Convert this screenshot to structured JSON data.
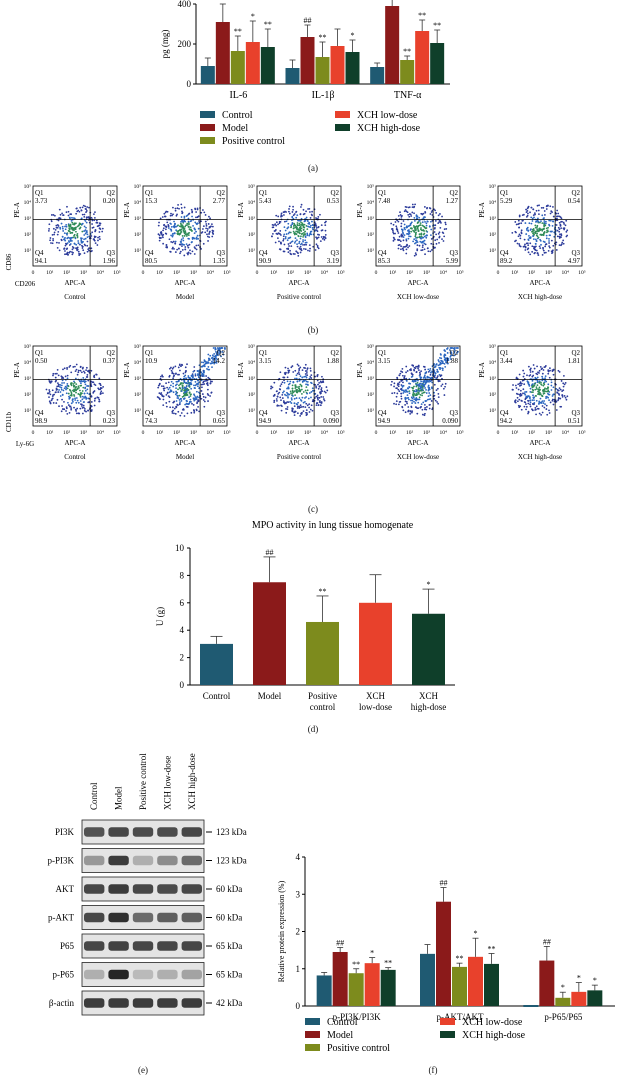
{
  "colors": {
    "control": "#1f5a72",
    "model": "#8b1a1a",
    "positive": "#7d8b1d",
    "low": "#e8412c",
    "high": "#0f3f2a"
  },
  "panels": {
    "a": "(a)",
    "b": "(b)",
    "c": "(c)",
    "d": "(d)",
    "e": "(e)",
    "f": "(f)"
  },
  "legend": {
    "control": "Control",
    "model": "Model",
    "positive": "Positive control",
    "low": "XCH low-dose",
    "high": "XCH high-dose"
  },
  "chart_data": [
    {
      "id": "a",
      "type": "bar",
      "ylabel": "pg (mg)",
      "ylim": [
        0,
        400
      ],
      "yticks": [
        0,
        200,
        400
      ],
      "categories": [
        "IL-6",
        "IL-1β",
        "TNF-α"
      ],
      "series": [
        {
          "name": "Control",
          "values": [
            90,
            80,
            85
          ],
          "err": [
            40,
            40,
            20
          ],
          "sig": [
            "",
            "",
            ""
          ]
        },
        {
          "name": "Model",
          "values": [
            310,
            235,
            390
          ],
          "err": [
            90,
            60,
            60
          ],
          "sig": [
            "",
            "##",
            ""
          ]
        },
        {
          "name": "Positive control",
          "values": [
            165,
            135,
            120
          ],
          "err": [
            75,
            75,
            20
          ],
          "sig": [
            "**",
            "**",
            "**"
          ]
        },
        {
          "name": "XCH low-dose",
          "values": [
            210,
            190,
            265
          ],
          "err": [
            105,
            85,
            55
          ],
          "sig": [
            "*",
            "",
            "**"
          ]
        },
        {
          "name": "XCH high-dose",
          "values": [
            185,
            160,
            205
          ],
          "err": [
            90,
            60,
            65
          ],
          "sig": [
            "**",
            "*",
            "**"
          ]
        }
      ]
    },
    {
      "id": "d",
      "type": "bar",
      "title": "MPO activity in lung tissue homogenate",
      "ylabel": "U (g)",
      "ylim": [
        0,
        10
      ],
      "yticks": [
        0,
        2,
        4,
        6,
        8,
        10
      ],
      "categories": [
        "Control",
        "Model",
        "Positive control",
        "XCH low-dose",
        "XCH high-dose"
      ],
      "category_lines": [
        [
          "Control"
        ],
        [
          "Model"
        ],
        [
          "Positive",
          "control"
        ],
        [
          "XCH",
          "low-dose"
        ],
        [
          "XCH",
          "high-dose"
        ]
      ],
      "values": [
        3.0,
        7.5,
        4.6,
        6.0,
        5.2
      ],
      "err": [
        0.55,
        1.85,
        1.9,
        2.05,
        1.8
      ],
      "sig": [
        "",
        "##",
        "**",
        "",
        "*"
      ]
    },
    {
      "id": "f",
      "type": "bar",
      "ylabel": "Relative protein expression (%)",
      "ylim": [
        0,
        4
      ],
      "yticks": [
        0,
        1,
        2,
        3,
        4
      ],
      "categories": [
        "p-PI3K/PI3K",
        "p-AKT/AKT",
        "p-P65/P65"
      ],
      "series": [
        {
          "name": "Control",
          "values": [
            0.82,
            1.4,
            0.0
          ],
          "err": [
            0.08,
            0.25,
            0.0
          ],
          "sig": [
            "",
            "",
            ""
          ]
        },
        {
          "name": "Model",
          "values": [
            1.45,
            2.8,
            1.22
          ],
          "err": [
            0.12,
            0.38,
            0.38
          ],
          "sig": [
            "##",
            "##",
            "##"
          ]
        },
        {
          "name": "Positive control",
          "values": [
            0.88,
            1.05,
            0.22
          ],
          "err": [
            0.12,
            0.1,
            0.15
          ],
          "sig": [
            "**",
            "**",
            "*"
          ]
        },
        {
          "name": "XCH low-dose",
          "values": [
            1.15,
            1.32,
            0.38
          ],
          "err": [
            0.15,
            0.5,
            0.25
          ],
          "sig": [
            "*",
            "*",
            "*"
          ]
        },
        {
          "name": "XCH high-dose",
          "values": [
            0.97,
            1.13,
            0.42
          ],
          "err": [
            0.06,
            0.28,
            0.14
          ],
          "sig": [
            "**",
            "**",
            "*"
          ]
        }
      ]
    }
  ],
  "flow_b": {
    "ylabel": "PE-A",
    "xlabel": "APC-A",
    "y_marker": "CD86",
    "x_marker": "CD206",
    "plots": [
      {
        "group": "Control",
        "q1": "3.73",
        "q2": "0.20",
        "q3": "1.96",
        "q4": "94.1"
      },
      {
        "group": "Model",
        "q1": "15.3",
        "q2": "2.77",
        "q3": "1.35",
        "q4": "80.5"
      },
      {
        "group": "Positive control",
        "q1": "5.43",
        "q2": "0.53",
        "q3": "3.19",
        "q4": "90.9"
      },
      {
        "group": "XCH low-dose",
        "q1": "7.48",
        "q2": "1.27",
        "q3": "5.99",
        "q4": "85.3"
      },
      {
        "group": "XCH high-dose",
        "q1": "5.29",
        "q2": "0.54",
        "q3": "4.97",
        "q4": "89.2"
      }
    ]
  },
  "flow_c": {
    "ylabel": "PE-A",
    "xlabel": "APC-A",
    "y_marker": "CD11b",
    "x_marker": "Ly-6G",
    "plots": [
      {
        "group": "Control",
        "q1": "0.50",
        "q2": "0.37",
        "q3": "0.23",
        "q4": "98.9"
      },
      {
        "group": "Model",
        "q1": "10.9",
        "q2": "14.2",
        "q3": "0.65",
        "q4": "74.3"
      },
      {
        "group": "Positive control",
        "q1": "3.15",
        "q2": "1.88",
        "q3": "0.090",
        "q4": "94.9"
      },
      {
        "group": "XCH low-dose",
        "q1": "3.15",
        "q2": "1.88",
        "q3": "0.090",
        "q4": "94.9"
      },
      {
        "group": "XCH high-dose",
        "q1": "3.44",
        "q2": "1.81",
        "q3": "0.51",
        "q4": "94.2"
      }
    ]
  },
  "quad_labels": [
    "Q1",
    "Q2",
    "Q3",
    "Q4"
  ],
  "flow_ticks": [
    "0",
    "10¹",
    "10²",
    "10³",
    "10⁴",
    "10⁵"
  ],
  "western": {
    "lanes": [
      "Control",
      "Model",
      "Positive control",
      "XCH low-dose",
      "XCH high-dose"
    ],
    "bands": [
      {
        "protein": "PI3K",
        "kda": "123 kDa",
        "intensity": [
          0.75,
          0.8,
          0.78,
          0.78,
          0.8
        ]
      },
      {
        "protein": "p-PI3K",
        "kda": "123 kDa",
        "intensity": [
          0.45,
          0.85,
          0.35,
          0.5,
          0.65
        ]
      },
      {
        "protein": "AKT",
        "kda": "60 kDa",
        "intensity": [
          0.8,
          0.85,
          0.8,
          0.78,
          0.8
        ]
      },
      {
        "protein": "p-AKT",
        "kda": "60 kDa",
        "intensity": [
          0.8,
          0.9,
          0.65,
          0.7,
          0.7
        ]
      },
      {
        "protein": "P65",
        "kda": "65 kDa",
        "intensity": [
          0.8,
          0.82,
          0.8,
          0.8,
          0.8
        ]
      },
      {
        "protein": "p-P65",
        "kda": "65 kDa",
        "intensity": [
          0.35,
          0.95,
          0.3,
          0.35,
          0.4
        ]
      },
      {
        "protein": "β-actin",
        "kda": "42 kDa",
        "intensity": [
          0.85,
          0.85,
          0.85,
          0.85,
          0.85
        ]
      }
    ]
  }
}
